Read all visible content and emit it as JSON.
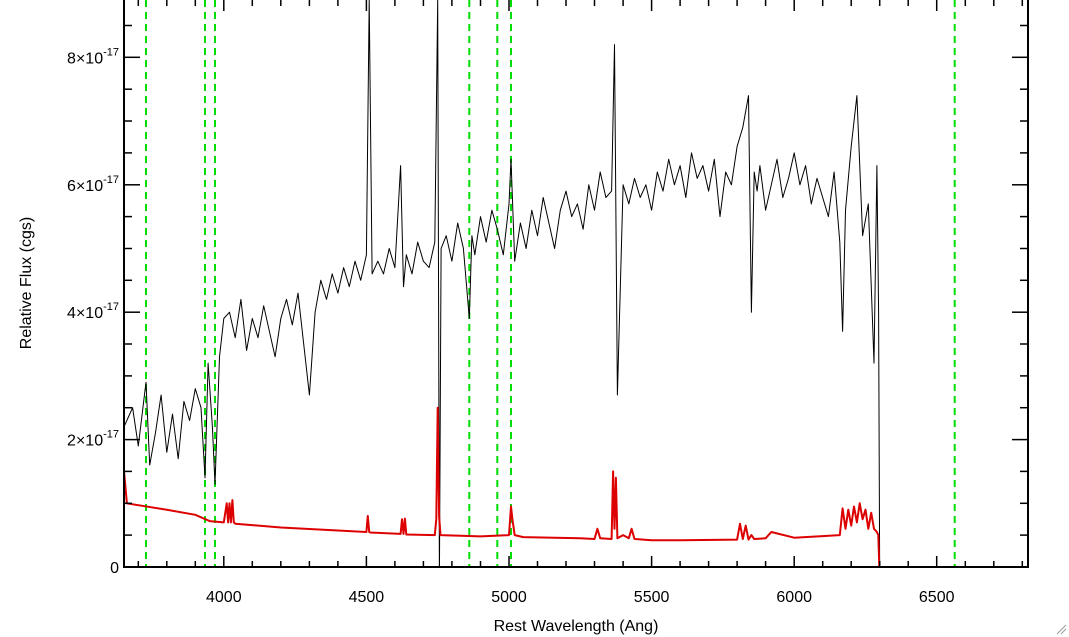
{
  "chart_data": {
    "type": "line",
    "title": "",
    "xlabel": "Rest Wavelength (Ang)",
    "ylabel": "Relative Flux (cgs)",
    "xlim": [
      3650,
      6820
    ],
    "ylim": [
      0,
      8.9e-17
    ],
    "x_ticks": [
      {
        "value": 4000,
        "label": "4000"
      },
      {
        "value": 4500,
        "label": "4500"
      },
      {
        "value": 5000,
        "label": "5000"
      },
      {
        "value": 5500,
        "label": "5500"
      },
      {
        "value": 6000,
        "label": "6000"
      },
      {
        "value": 6500,
        "label": "6500"
      }
    ],
    "y_ticks": [
      {
        "value": 0,
        "label": "0",
        "mantissa": "0",
        "exponent": ""
      },
      {
        "value": 2e-17,
        "label": "2×10^-17",
        "mantissa": "2×10",
        "exponent": "-17"
      },
      {
        "value": 4e-17,
        "label": "4×10^-17",
        "mantissa": "4×10",
        "exponent": "-17"
      },
      {
        "value": 6e-17,
        "label": "6×10^-17",
        "mantissa": "6×10",
        "exponent": "-17"
      },
      {
        "value": 8e-17,
        "label": "8×10^-17",
        "mantissa": "8×10",
        "exponent": "-17"
      }
    ],
    "reference_lines": {
      "color": "#00dd00",
      "style": "dashed",
      "x": [
        3727,
        3934,
        3969,
        4861,
        4959,
        5007,
        6563
      ]
    },
    "series": [
      {
        "color": "#000000",
        "x": [
          3650,
          3680,
          3700,
          3727,
          3740,
          3760,
          3780,
          3800,
          3820,
          3840,
          3860,
          3880,
          3900,
          3920,
          3934,
          3945,
          3960,
          3969,
          3985,
          4000,
          4020,
          4040,
          4060,
          4080,
          4100,
          4120,
          4140,
          4160,
          4180,
          4200,
          4220,
          4240,
          4260,
          4280,
          4300,
          4320,
          4340,
          4360,
          4380,
          4400,
          4420,
          4440,
          4460,
          4480,
          4500,
          4510,
          4520,
          4540,
          4560,
          4580,
          4600,
          4620,
          4630,
          4640,
          4660,
          4680,
          4700,
          4720,
          4740,
          4750,
          4756,
          4762,
          4780,
          4800,
          4820,
          4840,
          4861,
          4870,
          4880,
          4900,
          4920,
          4940,
          4959,
          4980,
          5000,
          5007,
          5020,
          5040,
          5060,
          5080,
          5100,
          5120,
          5140,
          5160,
          5180,
          5200,
          5220,
          5240,
          5260,
          5280,
          5300,
          5320,
          5340,
          5360,
          5370,
          5380,
          5400,
          5420,
          5440,
          5460,
          5480,
          5500,
          5520,
          5540,
          5560,
          5580,
          5600,
          5620,
          5640,
          5660,
          5680,
          5700,
          5720,
          5740,
          5760,
          5780,
          5800,
          5820,
          5840,
          5850,
          5860,
          5870,
          5880,
          5900,
          5920,
          5940,
          5960,
          5980,
          6000,
          6020,
          6040,
          6060,
          6080,
          6100,
          6120,
          6140,
          6160,
          6170,
          6180,
          6200,
          6220,
          6240,
          6260,
          6280,
          6290,
          6296,
          6300,
          6820
        ],
        "y": [
          2.2e-17,
          2.5e-17,
          1.9e-17,
          2.9e-17,
          1.6e-17,
          2.1e-17,
          2.7e-17,
          1.8e-17,
          2.4e-17,
          1.7e-17,
          2.6e-17,
          2.3e-17,
          2.8e-17,
          2.5e-17,
          1.4e-17,
          3.2e-17,
          2.2e-17,
          1.3e-17,
          3.3e-17,
          3.9e-17,
          4e-17,
          3.6e-17,
          4.2e-17,
          3.4e-17,
          3.9e-17,
          3.6e-17,
          4.1e-17,
          3.7e-17,
          3.3e-17,
          3.9e-17,
          4.2e-17,
          3.8e-17,
          4.3e-17,
          3.5e-17,
          2.7e-17,
          4e-17,
          4.5e-17,
          4.2e-17,
          4.6e-17,
          4.3e-17,
          4.7e-17,
          4.4e-17,
          4.8e-17,
          4.5e-17,
          4.9e-17,
          8.9e-17,
          4.6e-17,
          4.8e-17,
          4.6e-17,
          5e-17,
          4.7e-17,
          6.3e-17,
          4.4e-17,
          4.9e-17,
          4.6e-17,
          5.1e-17,
          4.8e-17,
          4.7e-17,
          5.1e-17,
          8.9e-17,
          -2e-18,
          5e-17,
          5.2e-17,
          4.8e-17,
          5.4e-17,
          5e-17,
          3.9e-17,
          5.2e-17,
          4.9e-17,
          5.5e-17,
          5.1e-17,
          5.6e-17,
          5.3e-17,
          4.9e-17,
          5.7e-17,
          6.4e-17,
          4.8e-17,
          5.4e-17,
          5e-17,
          5.6e-17,
          5.2e-17,
          5.8e-17,
          5.4e-17,
          5e-17,
          5.6e-17,
          5.9e-17,
          5.5e-17,
          5.7e-17,
          5.3e-17,
          6e-17,
          5.6e-17,
          6.2e-17,
          5.8e-17,
          5.9e-17,
          8.2e-17,
          2.7e-17,
          6e-17,
          5.7e-17,
          6.1e-17,
          5.8e-17,
          6e-17,
          5.6e-17,
          6.2e-17,
          5.9e-17,
          6.4e-17,
          6e-17,
          6.3e-17,
          5.8e-17,
          6.5e-17,
          6.1e-17,
          6.3e-17,
          5.9e-17,
          6.4e-17,
          5.5e-17,
          6.2e-17,
          6e-17,
          6.6e-17,
          6.9e-17,
          7.4e-17,
          4e-17,
          6.2e-17,
          5.9e-17,
          6.3e-17,
          5.6e-17,
          6e-17,
          6.4e-17,
          5.8e-17,
          6.1e-17,
          6.5e-17,
          6e-17,
          6.3e-17,
          5.7e-17,
          6.1e-17,
          5.8e-17,
          5.5e-17,
          6.2e-17,
          5.1e-17,
          3.7e-17,
          5.6e-17,
          6.6e-17,
          7.4e-17,
          5.2e-17,
          5.7e-17,
          3.2e-17,
          6.3e-17,
          4e-17,
          -2e-18,
          -2e-18
        ]
      },
      {
        "color": "#dd0000",
        "x": [
          3650,
          3660,
          3700,
          3800,
          3900,
          3950,
          4000,
          4010,
          4015,
          4020,
          4025,
          4030,
          4035,
          4040,
          4200,
          4500,
          4505,
          4510,
          4515,
          4520,
          4620,
          4625,
          4630,
          4635,
          4640,
          4740,
          4745,
          4750,
          4755,
          4760,
          4900,
          5000,
          5007,
          5012,
          5020,
          5050,
          5250,
          5300,
          5310,
          5320,
          5360,
          5365,
          5370,
          5375,
          5380,
          5400,
          5420,
          5430,
          5440,
          5500,
          5600,
          5800,
          5810,
          5820,
          5830,
          5840,
          5850,
          5860,
          5900,
          5920,
          6000,
          6160,
          6170,
          6180,
          6190,
          6200,
          6210,
          6220,
          6230,
          6240,
          6250,
          6260,
          6270,
          6280,
          6290,
          6295,
          6300,
          6820
        ],
        "y": [
          1.5e-17,
          1e-17,
          9.7e-18,
          9e-18,
          8.2e-18,
          7.2e-18,
          7e-18,
          1e-17,
          7e-18,
          1e-17,
          7e-18,
          1.05e-17,
          7e-18,
          6.8e-18,
          6.2e-18,
          5.5e-18,
          8e-18,
          5.5e-18,
          5.4e-18,
          5.4e-18,
          5.2e-18,
          7.5e-18,
          5.2e-18,
          7.6e-18,
          5.1e-18,
          5e-18,
          7.5e-18,
          2.5e-17,
          8e-18,
          5e-18,
          4.8e-18,
          5e-18,
          9.5e-18,
          7.5e-18,
          5e-18,
          4.7e-18,
          4.5e-18,
          4.4e-18,
          6e-18,
          4.5e-18,
          4.4e-18,
          1.5e-17,
          6e-18,
          1.4e-17,
          4.5e-18,
          5e-18,
          4.5e-18,
          6e-18,
          4.4e-18,
          4.2e-18,
          4.2e-18,
          4.3e-18,
          6.8e-18,
          4.4e-18,
          6.5e-18,
          4.3e-18,
          5e-18,
          4.4e-18,
          4.5e-18,
          5.5e-18,
          4.6e-18,
          5e-18,
          9.2e-18,
          6e-18,
          9e-18,
          6.5e-18,
          9.5e-18,
          7e-18,
          1e-17,
          7.5e-18,
          9e-18,
          6e-18,
          8.5e-18,
          6e-18,
          5.5e-18,
          5e-18,
          -2e-18,
          -2e-18
        ]
      }
    ]
  }
}
